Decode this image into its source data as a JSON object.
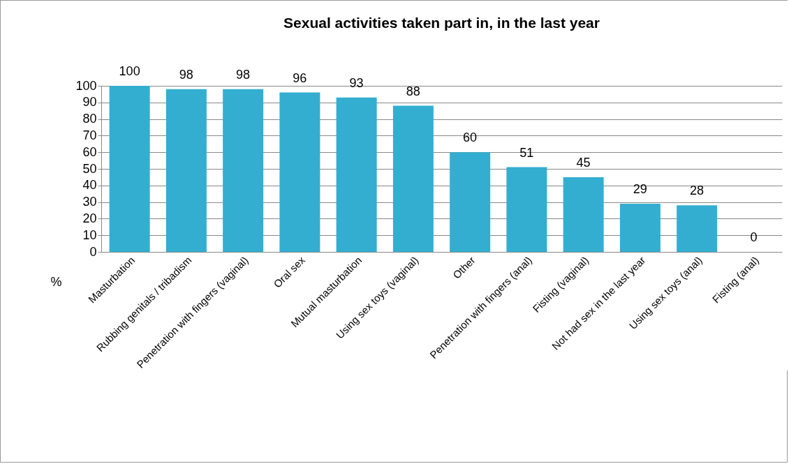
{
  "chart_data": {
    "type": "bar",
    "title": "Sexual  activities taken part in, in the last year",
    "ylabel": "%",
    "categories": [
      "Masturbation",
      "Rubbing genitals / tribadism",
      "Penetration with fingers (vaginal)",
      "Oral sex",
      "Mutual masturbation",
      "Using sex toys (vaginal)",
      "Other",
      "Penetration with fingers (anal)",
      "Fisting (vaginal)",
      "Not had sex in the last year",
      "Using sex toys (anal)",
      "Fisting (anal)"
    ],
    "values": [
      100,
      98,
      98,
      96,
      93,
      88,
      60,
      51,
      45,
      29,
      28,
      0
    ],
    "color": "#33aed0",
    "ylim": [
      0,
      100
    ],
    "yticks": [
      0,
      10,
      20,
      30,
      40,
      50,
      60,
      70,
      80,
      90,
      100
    ],
    "grid": "y",
    "data_labels": true
  }
}
